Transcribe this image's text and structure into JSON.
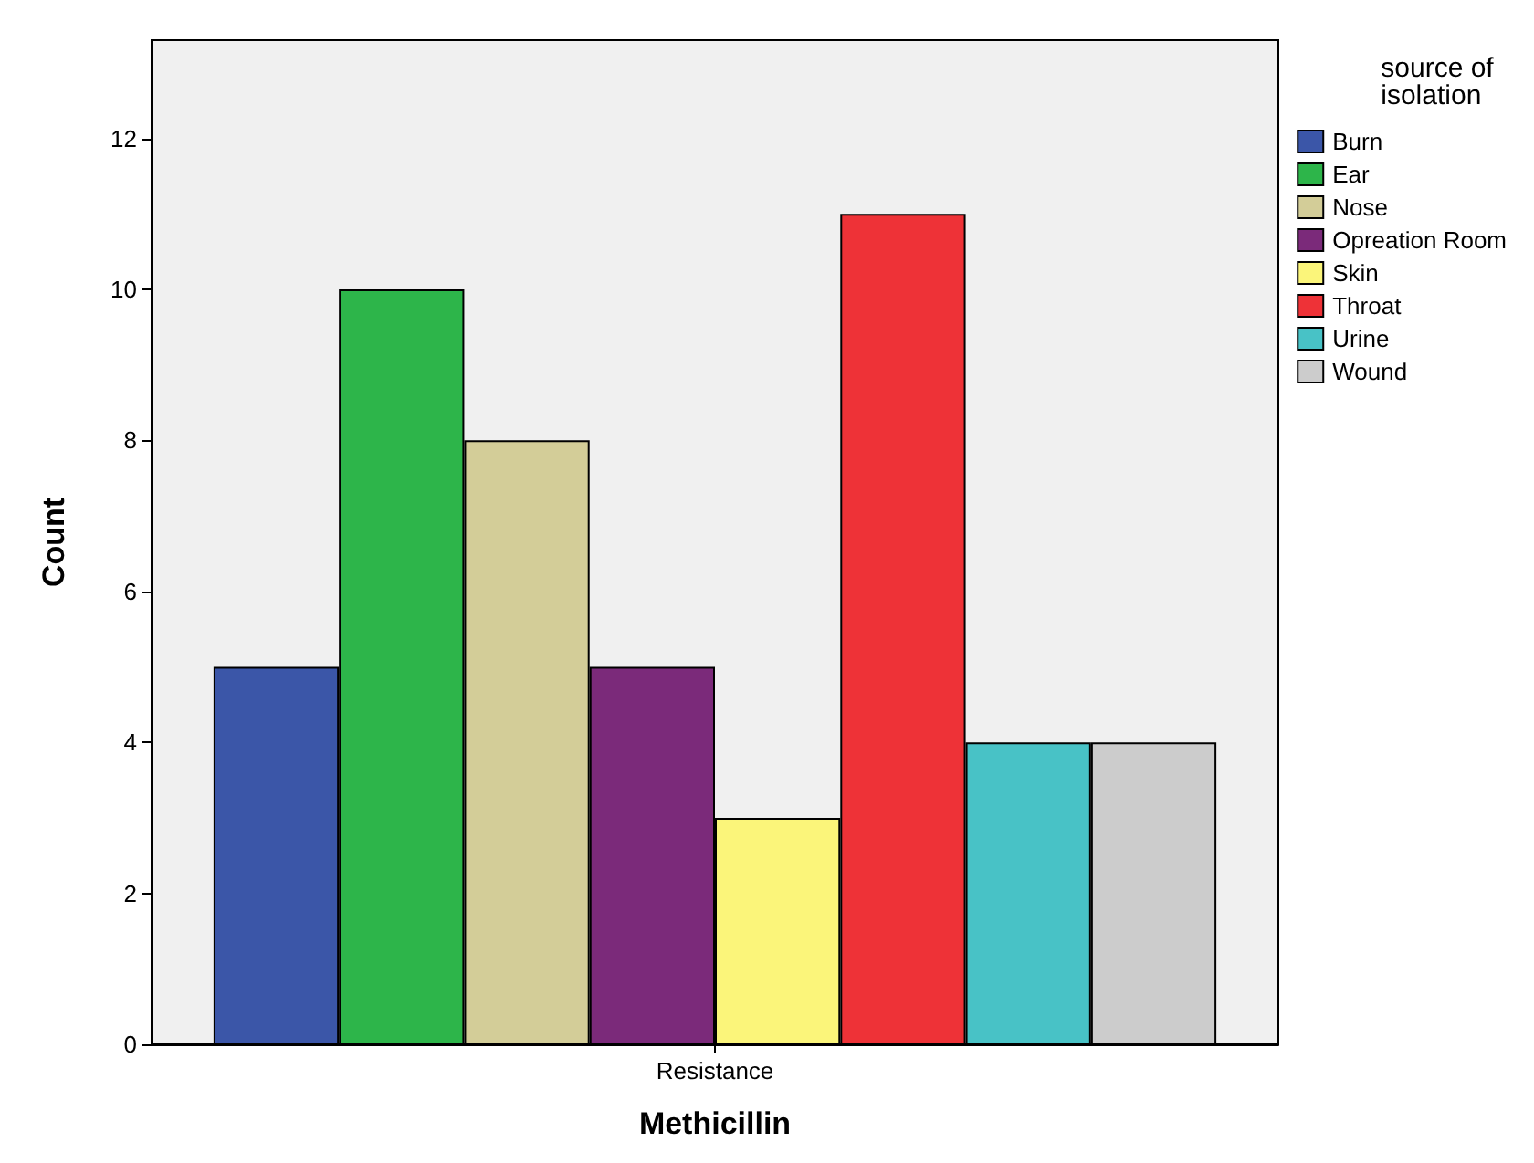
{
  "chart_data": {
    "type": "bar",
    "xlabel": "Methicillin",
    "ylabel": "Count",
    "legend_title": "source of isolation",
    "categories": [
      "Resistance"
    ],
    "series": [
      {
        "name": "Burn",
        "color": "#3b56a8",
        "values": [
          5
        ]
      },
      {
        "name": "Ear",
        "color": "#2db54a",
        "values": [
          10
        ]
      },
      {
        "name": "Nose",
        "color": "#d3cd98",
        "values": [
          8
        ]
      },
      {
        "name": "Opreation Room",
        "color": "#7b2a7a",
        "values": [
          5
        ]
      },
      {
        "name": "Skin",
        "color": "#fbf57a",
        "values": [
          3
        ]
      },
      {
        "name": "Throat",
        "color": "#ee3237",
        "values": [
          11
        ]
      },
      {
        "name": "Urine",
        "color": "#48c2c6",
        "values": [
          4
        ]
      },
      {
        "name": "Wound",
        "color": "#cccccc",
        "values": [
          4
        ]
      }
    ],
    "ylim": [
      0,
      13.3
    ],
    "yticks": [
      0,
      2,
      4,
      6,
      8,
      10,
      12
    ],
    "grid": false,
    "legend": "top right"
  }
}
